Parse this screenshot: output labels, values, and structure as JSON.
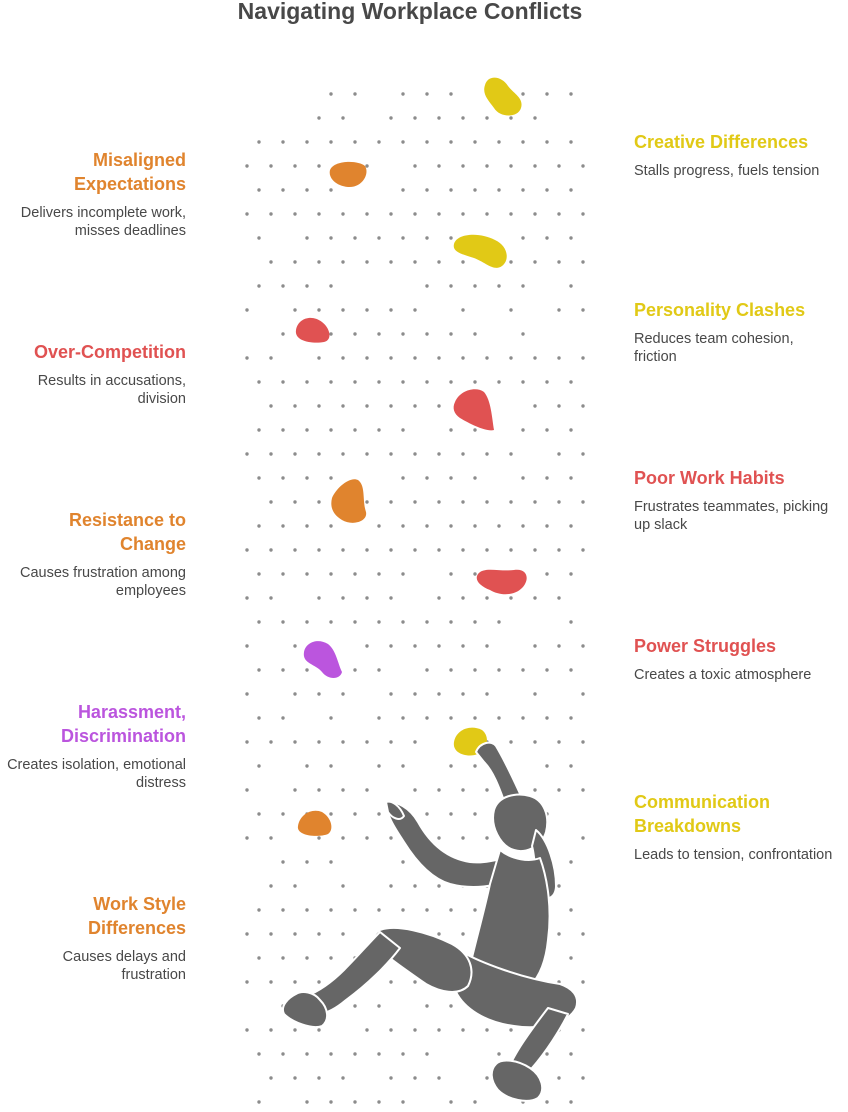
{
  "title": "Navigating Workplace Conflicts",
  "colors": {
    "orange": "#e0842e",
    "red": "#e05252",
    "yellow": "#e1c916",
    "purple": "#bb55de",
    "dots": "#8c8c8c",
    "climber": "#666666"
  },
  "left_items": [
    {
      "title": "Misaligned Expectations",
      "description": "Delivers incomplete work, misses deadlines",
      "color": "orange"
    },
    {
      "title": "Over-Competition",
      "description": "Results in accusations, division",
      "color": "red"
    },
    {
      "title": "Resistance to Change",
      "description": "Causes frustration among employees",
      "color": "orange"
    },
    {
      "title": "Harassment, Discrimination",
      "description": "Creates isolation, emotional distress",
      "color": "purple"
    },
    {
      "title": "Work Style Differences",
      "description": "Causes delays and frustration",
      "color": "orange"
    }
  ],
  "right_items": [
    {
      "title": "Creative Differences",
      "description": "Stalls progress, fuels tension",
      "color": "yellow"
    },
    {
      "title": "Personality Clashes",
      "description": "Reduces team cohesion, friction",
      "color": "yellow"
    },
    {
      "title": "Poor Work Habits",
      "description": "Frustrates teammates, picking up slack",
      "color": "red"
    },
    {
      "title": "Power Struggles",
      "description": "Creates a toxic atmosphere",
      "color": "red"
    },
    {
      "title": "Communication Breakdowns",
      "description": "Leads to tension, confrontation",
      "color": "yellow"
    }
  ]
}
